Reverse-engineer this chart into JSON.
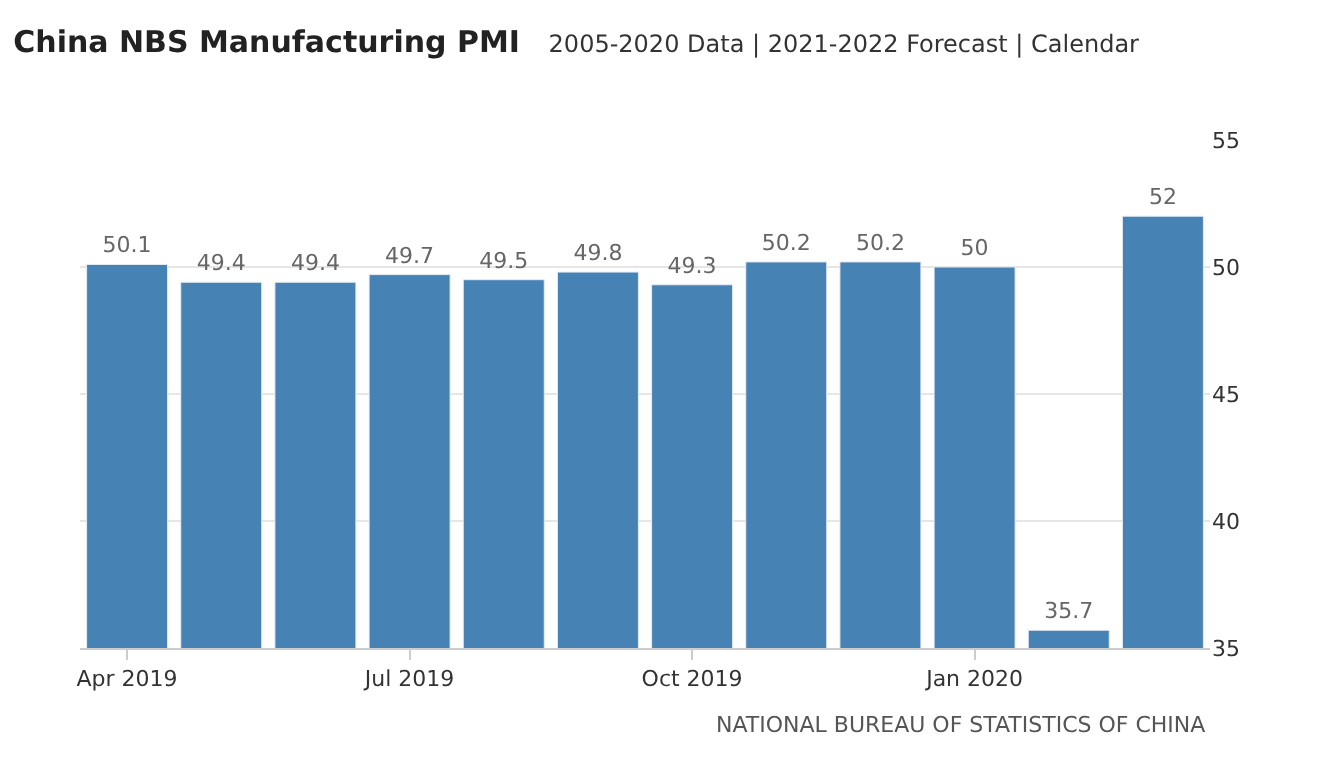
{
  "chart_data": {
    "type": "bar",
    "title": "China NBS Manufacturing PMI",
    "subtitle": "2005-2020 Data | 2021-2022 Forecast | Calendar",
    "categories": [
      "Apr 2019",
      null,
      null,
      "Jul 2019",
      null,
      null,
      "Oct 2019",
      null,
      null,
      "Jan 2020",
      null,
      null
    ],
    "values": [
      50.1,
      49.4,
      49.4,
      49.7,
      49.5,
      49.8,
      49.3,
      50.2,
      50.2,
      50,
      35.7,
      52
    ],
    "color": "#4682b4",
    "data_labels": true,
    "ylim": [
      35,
      55
    ],
    "yticks": [
      35,
      40,
      45,
      50,
      55
    ],
    "grid": "y",
    "annotations": [
      "NATIONAL BUREAU OF STATISTICS OF CHINA"
    ]
  }
}
